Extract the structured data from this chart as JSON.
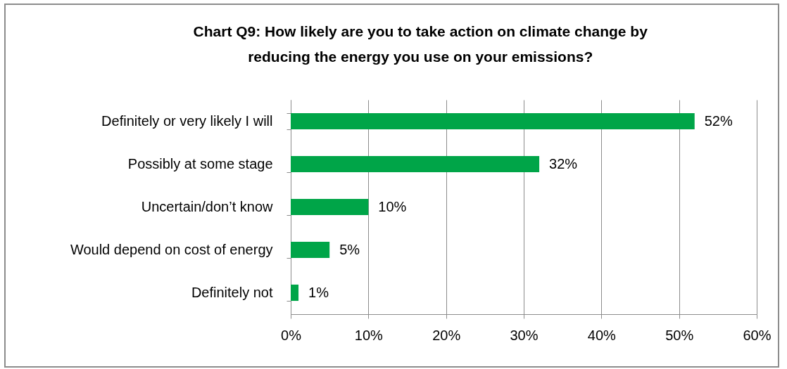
{
  "chart_data": {
    "type": "bar",
    "orientation": "horizontal",
    "title": "Chart Q9: How likely are you to take action on climate change by reducing the energy you use on your emissions?",
    "categories": [
      "Definitely or very likely I will",
      "Possibly at some stage",
      "Uncertain/don’t know",
      "Would depend on cost of energy",
      "Definitely not"
    ],
    "values": [
      52,
      32,
      10,
      5,
      1
    ],
    "value_labels": [
      "52%",
      "32%",
      "10%",
      "5%",
      "1%"
    ],
    "color": "#00a548",
    "xlim": [
      0,
      60
    ],
    "xticks": [
      {
        "value": 0,
        "label": "0%"
      },
      {
        "value": 10,
        "label": "10%"
      },
      {
        "value": 20,
        "label": "20%"
      },
      {
        "value": 30,
        "label": "30%"
      },
      {
        "value": 40,
        "label": "40%"
      },
      {
        "value": 50,
        "label": "50%"
      },
      {
        "value": 60,
        "label": "60%"
      }
    ],
    "grid": "x"
  }
}
